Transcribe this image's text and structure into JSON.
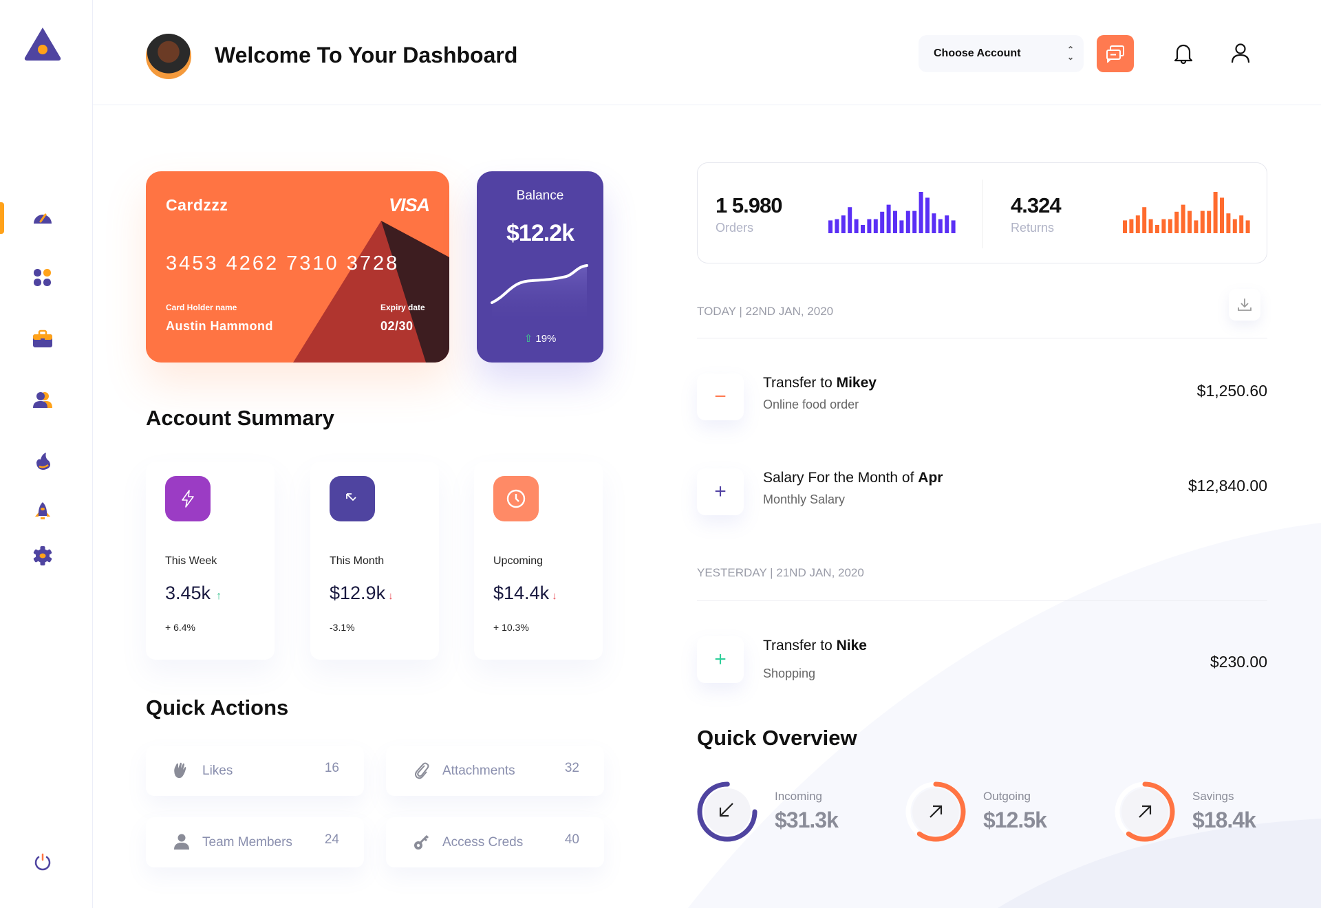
{
  "colors": {
    "accent_purple": "#5242a3",
    "accent_orange": "#ff7443",
    "sidebar_active": "#ffa21a",
    "up": "#2fbf8a",
    "down": "#e8434d"
  },
  "sidebar": {
    "logo": "triangle-logo-icon",
    "items": [
      {
        "icon": "dashboard-gauge-icon",
        "active": true
      },
      {
        "icon": "apps-grid-icon"
      },
      {
        "icon": "briefcase-icon"
      },
      {
        "icon": "users-icon"
      },
      {
        "icon": "fire-icon"
      },
      {
        "icon": "rocket-icon"
      },
      {
        "icon": "gear-icon"
      }
    ],
    "logout": "power-icon"
  },
  "header": {
    "title": "Welcome To Your Dashboard",
    "account_select": "Choose Account",
    "chat_icon": "chat-icon",
    "bell_icon": "bell-icon",
    "profile_icon": "user-icon"
  },
  "card": {
    "name": "Cardzzz",
    "brand": "VISA",
    "number": "3453 4262 7310 3728",
    "holder_label": "Card Holder name",
    "holder": "Austin Hammond",
    "expiry_label": "Expiry date",
    "expiry": "02/30"
  },
  "balance": {
    "label": "Balance",
    "value": "$12.2k",
    "change": "19%"
  },
  "account_summary": {
    "title": "Account Summary",
    "cards": [
      {
        "label": "This Week",
        "value": "3.45k",
        "trend": "up",
        "change": "+ 6.4%",
        "icon": "lightning-icon",
        "color": "#9b3cc4"
      },
      {
        "label": "This Month",
        "value": "$12.9k",
        "trend": "down",
        "change": "-3.1%",
        "icon": "arrow-up-left-down-icon",
        "color": "#4f44a0"
      },
      {
        "label": "Upcoming",
        "value": "$14.4k",
        "trend": "down",
        "change": "+ 10.3%",
        "icon": "clock-icon",
        "color": "#ff8a66"
      }
    ]
  },
  "quick_actions": {
    "title": "Quick Actions",
    "items": [
      {
        "label": "Likes",
        "count": "16",
        "icon": "clap-hands-icon"
      },
      {
        "label": "Attachments",
        "count": "32",
        "icon": "paperclip-icon"
      },
      {
        "label": "Team Members",
        "count": "24",
        "icon": "person-icon"
      },
      {
        "label": "Access Creds",
        "count": "40",
        "icon": "key-icon"
      }
    ]
  },
  "stats": {
    "orders": {
      "value": "1 5.980",
      "label": "Orders",
      "color": "#5a2ff5",
      "bars": [
        31,
        34,
        43,
        63,
        34,
        20,
        34,
        34,
        52,
        69,
        54,
        31,
        54,
        54,
        100,
        86,
        48,
        34,
        43,
        31
      ]
    },
    "returns": {
      "value": "4.324",
      "label": "Returns",
      "color": "#ff6b2e",
      "bars": [
        31,
        34,
        43,
        63,
        34,
        20,
        34,
        34,
        52,
        69,
        54,
        31,
        54,
        54,
        100,
        86,
        48,
        34,
        43,
        31
      ]
    }
  },
  "transactions": {
    "today_header": "TODAY | 22ND JAN, 2020",
    "yesterday_header": "YESTERDAY | 21ND JAN, 2020",
    "download_icon": "download-icon",
    "items": [
      {
        "prefix": "Transfer to ",
        "bold": "Mikey",
        "sub": "Online food order",
        "amount": "$1,250.60",
        "sign": "−",
        "sign_color": "#ff7a50"
      },
      {
        "prefix": "Salary For the Month of ",
        "bold": "Apr",
        "sub": "Monthly Salary",
        "amount": "$12,840.00",
        "sign": "+",
        "sign_color": "#5242a3"
      },
      {
        "prefix": "Transfer to ",
        "bold": "Nike",
        "sub": "Shopping",
        "amount": "$230.00",
        "sign": "+",
        "sign_color": "#2fcf9a"
      }
    ]
  },
  "quick_overview": {
    "title": "Quick Overview",
    "items": [
      {
        "label": "Incoming",
        "value": "$31.3k",
        "progress": 75,
        "color": "#4f44a0",
        "icon": "arrow-down-left-icon"
      },
      {
        "label": "Outgoing",
        "value": "$12.5k",
        "progress": 60,
        "color": "#ff7443",
        "icon": "arrow-up-right-icon"
      },
      {
        "label": "Savings",
        "value": "$18.4k",
        "progress": 60,
        "color": "#ff7443",
        "icon": "arrow-up-right-icon"
      }
    ]
  }
}
